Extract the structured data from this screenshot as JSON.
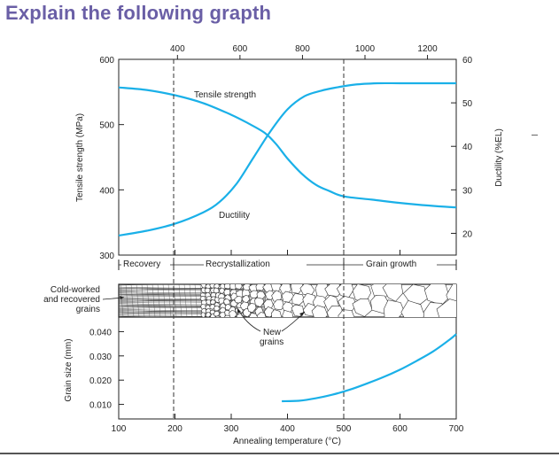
{
  "page": {
    "title": "Explain the following grapth"
  },
  "colors": {
    "curve": "#1ab0e8",
    "text_title": "#6a5fa6",
    "axis": "#222222"
  },
  "chart_data": [
    {
      "type": "line",
      "title": "",
      "xlabel_top": "",
      "x_top_ticks": [
        400,
        600,
        800,
        1000,
        1200
      ],
      "ylabel_left": "Tensile strength (MPa)",
      "ylim_left": [
        300,
        600
      ],
      "y_left_ticks": [
        300,
        400,
        500,
        600
      ],
      "ylabel_right": "Ductility (%EL)",
      "ylim_right": [
        15,
        60
      ],
      "y_right_ticks": [
        20,
        30,
        40,
        50,
        60
      ],
      "xlim": [
        100,
        700
      ],
      "series": [
        {
          "name": "Tensile strength",
          "axis": "left",
          "x": [
            100,
            150,
            200,
            250,
            300,
            330,
            360,
            380,
            400,
            425,
            450,
            475,
            500,
            550,
            600,
            650,
            700
          ],
          "y": [
            557,
            553,
            545,
            533,
            515,
            502,
            487,
            470,
            448,
            425,
            408,
            398,
            390,
            385,
            380,
            376,
            373
          ]
        },
        {
          "name": "Ductility",
          "axis": "right",
          "x": [
            100,
            150,
            200,
            250,
            280,
            310,
            340,
            370,
            400,
            430,
            460,
            490,
            520,
            560,
            600,
            650,
            700
          ],
          "y": [
            19.5,
            20.6,
            22.2,
            24.8,
            27.3,
            31.5,
            37.5,
            43.5,
            48.5,
            51.5,
            52.8,
            53.6,
            54.2,
            54.5,
            54.5,
            54.5,
            54.5
          ]
        }
      ],
      "regions": [
        "Recovery",
        "Recrystallization",
        "Grain growth"
      ],
      "region_bounds": [
        100,
        200,
        485,
        700
      ]
    },
    {
      "type": "line",
      "title": "",
      "xlabel": "Annealing temperature (°C)",
      "x_ticks": [
        100,
        200,
        300,
        400,
        500,
        600,
        700
      ],
      "xlim": [
        100,
        700
      ],
      "ylabel": "Grain size (mm)",
      "y_ticks": [
        "0.040",
        "0.030",
        "0.020",
        "0.010"
      ],
      "ylim": [
        0.004,
        0.046
      ],
      "series": [
        {
          "name": "",
          "x": [
            390,
            420,
            450,
            480,
            510,
            540,
            570,
            600,
            630,
            660,
            690,
            700
          ],
          "y": [
            0.0113,
            0.0115,
            0.0125,
            0.014,
            0.016,
            0.0185,
            0.0212,
            0.0243,
            0.028,
            0.032,
            0.037,
            0.039
          ]
        }
      ]
    }
  ],
  "microstructure": {
    "label_cold": "Cold-worked",
    "label_recovered": "and recovered",
    "label_grains": "grains",
    "label_new": "New",
    "label_new2": "grains"
  }
}
